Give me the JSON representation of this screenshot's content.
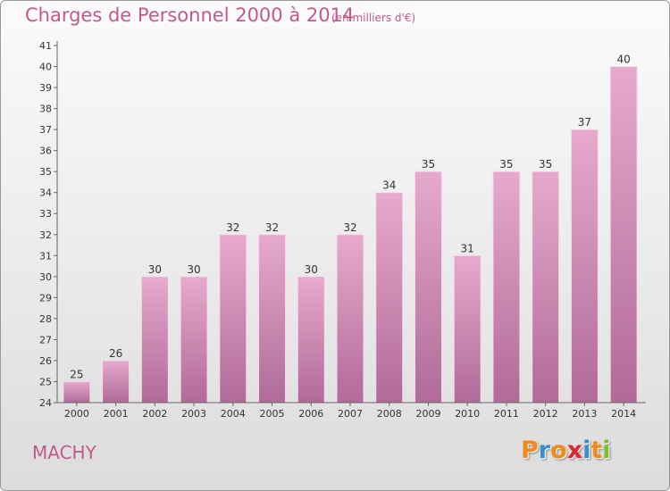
{
  "title": "Charges de Personnel 2000 à 2014",
  "subtitle": "(en milliers d'€)",
  "commune": "MACHY",
  "logo": {
    "text": "Proxiti",
    "letter_colors": [
      "#f08a1c",
      "#3a8fd0",
      "#f08a1c",
      "#e0262e",
      "#3a8fd0",
      "#f08a1c",
      "#7bbf2a"
    ]
  },
  "colors": {
    "bar_top": "#e7a9cd",
    "bar_bottom": "#b06b98",
    "text": "#c05a8c"
  },
  "chart_data": {
    "type": "bar",
    "categories": [
      "2000",
      "2001",
      "2002",
      "2003",
      "2004",
      "2005",
      "2006",
      "2007",
      "2008",
      "2009",
      "2010",
      "2011",
      "2012",
      "2013",
      "2014"
    ],
    "values": [
      25,
      26,
      30,
      30,
      32,
      32,
      30,
      32,
      34,
      35,
      31,
      35,
      35,
      37,
      40
    ],
    "value_labels": [
      "25",
      "26",
      "30",
      "30",
      "32",
      "32",
      "30",
      "32",
      "34",
      "35",
      "31",
      "35",
      "35",
      "37",
      "40"
    ],
    "y_tick_labels": [
      "24",
      "25",
      "26",
      "27",
      "28",
      "29",
      "30",
      "31",
      "32",
      "33",
      "34",
      "35",
      "36",
      "37",
      "38",
      "39",
      "40",
      "41"
    ],
    "ylim": [
      24,
      41
    ],
    "grid": false
  }
}
